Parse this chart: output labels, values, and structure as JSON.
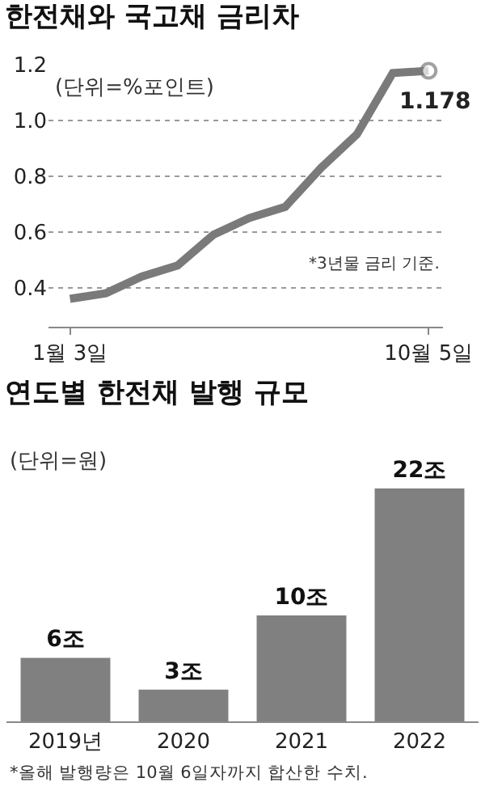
{
  "chart_data": [
    {
      "type": "line",
      "title": "한전채와 국고채 금리차",
      "annotations": [
        "(단위=%포인트)",
        "*3년물 금리 기준."
      ],
      "categories": [
        "1월 3일",
        null,
        null,
        null,
        null,
        null,
        null,
        null,
        null,
        null,
        "10월 5일"
      ],
      "series": [
        {
          "color": "#7a7a7a",
          "values": [
            0.36,
            0.38,
            0.44,
            0.48,
            0.59,
            0.65,
            0.69,
            0.83,
            0.95,
            1.17,
            1.178
          ],
          "value_labels": [
            null,
            null,
            null,
            null,
            null,
            null,
            null,
            null,
            null,
            null,
            "1.178"
          ]
        }
      ],
      "ylim": [
        0.26,
        1.2
      ],
      "yticks": [
        {
          "value": 0.4,
          "label": "0.4"
        },
        {
          "value": 0.6,
          "label": "0.6"
        },
        {
          "value": 0.8,
          "label": "0.8"
        },
        {
          "value": 1.0,
          "label": "1.0"
        },
        {
          "value": 1.2,
          "label": "1.2"
        }
      ],
      "grid": "y",
      "marker": "none",
      "line_style": "solid"
    },
    {
      "type": "bar",
      "title": "연도별 한전채 발행 규모",
      "annotations": [
        "(단위=원)",
        "*올해 발행량은 10월 6일자까지 합산한 수치."
      ],
      "categories": [
        "2019년",
        "2020",
        "2021",
        "2022"
      ],
      "values": [
        6,
        3,
        10,
        22
      ],
      "value_labels": [
        "6조",
        "3조",
        "10조",
        "22조"
      ],
      "color": "#808080",
      "ylim": [
        0,
        22
      ]
    }
  ]
}
